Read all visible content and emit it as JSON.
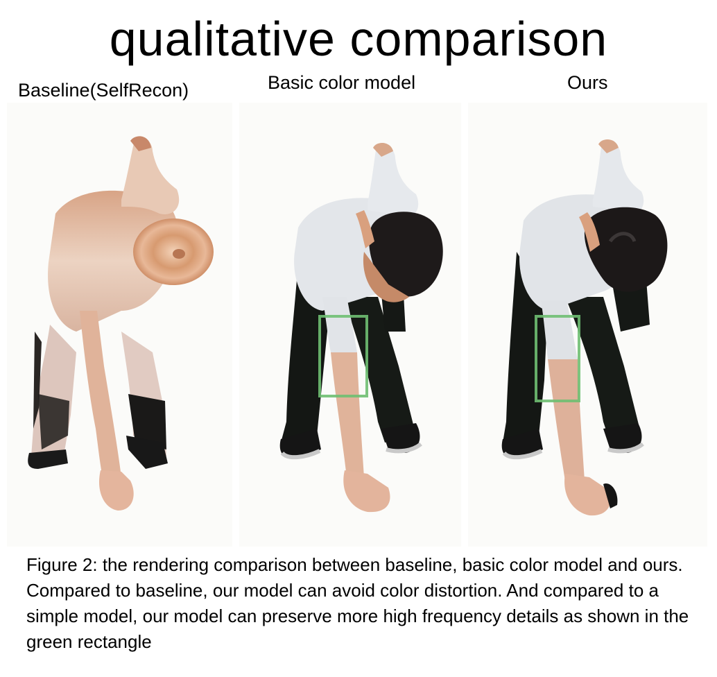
{
  "title": "qualitative comparison",
  "columns": [
    {
      "label": "Baseline(SelfRecon)"
    },
    {
      "label": "Basic color model"
    },
    {
      "label": "Ours"
    }
  ],
  "caption": "Figure 2: the rendering comparison between baseline, basic color model and ours. Compared to baseline, our model can avoid color distortion. And compared to a simple model, our model can preserve more high frequency details as shown in the green rectangle",
  "colors": {
    "skin": "#e3b49a",
    "skin_pale": "#ecd6c8",
    "shirt": "#e2e5ea",
    "pants": "#151815",
    "hair": "#1c1818",
    "highlight_box": "#6fbf72"
  }
}
